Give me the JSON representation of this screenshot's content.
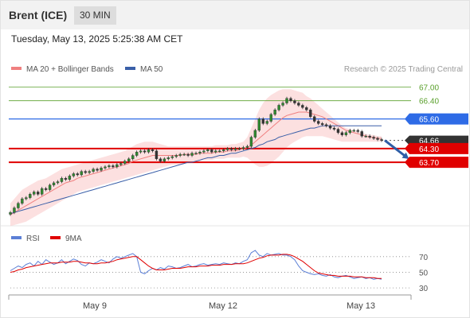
{
  "header": {
    "instrument": "Brent (ICE)",
    "timeframe": "30 MIN",
    "timestamp": "Tuesday, May 13, 2025 5:25:38 AM CET"
  },
  "legend": {
    "ma20": {
      "label": "MA 20 + Bollinger Bands",
      "color": "#f08080"
    },
    "ma50": {
      "label": "MA 50",
      "color": "#3a5fa8"
    },
    "copyright": "Research © 2025 Trading Central"
  },
  "rsi_legend": {
    "rsi": {
      "label": "RSI",
      "color": "#5b7fd6"
    },
    "ma9": {
      "label": "9MA",
      "color": "#e00000"
    }
  },
  "levels": [
    {
      "value": 67.0,
      "label": "67.00",
      "kind": "resistance-green",
      "color": "#5aa02c"
    },
    {
      "value": 66.4,
      "label": "66.40",
      "kind": "resistance-green",
      "color": "#5aa02c"
    },
    {
      "value": 65.6,
      "label": "65.60",
      "kind": "pivot",
      "color": "#2e6be6"
    },
    {
      "value": 64.66,
      "label": "64.66",
      "kind": "current",
      "color": "#333333"
    },
    {
      "value": 64.3,
      "label": "64.30",
      "kind": "support",
      "color": "#e00000"
    },
    {
      "value": 63.7,
      "label": "63.70",
      "kind": "support",
      "color": "#e00000"
    }
  ],
  "x_axis": {
    "labels": [
      "May 9",
      "May 12",
      "May 13"
    ]
  },
  "rsi_axis": {
    "labels": [
      "70",
      "50",
      "30"
    ],
    "values": [
      70,
      50,
      30
    ]
  },
  "chart_data": [
    {
      "type": "candlestick",
      "title": "Brent (ICE)",
      "y_range": [
        61.3,
        67.4
      ],
      "x_range": [
        0,
        100
      ],
      "close": [
        61.5,
        61.7,
        61.9,
        62.1,
        62.15,
        62.3,
        62.4,
        62.3,
        62.55,
        62.5,
        62.7,
        62.8,
        62.85,
        63.0,
        62.95,
        63.1,
        63.2,
        63.15,
        63.3,
        63.25,
        63.3,
        63.4,
        63.35,
        63.45,
        63.5,
        63.55,
        63.5,
        63.6,
        63.65,
        63.75,
        63.85,
        64.0,
        64.15,
        64.2,
        64.15,
        64.25,
        64.2,
        63.85,
        63.75,
        63.85,
        63.9,
        63.95,
        64.0,
        64.05,
        64.05,
        64.0,
        64.1,
        64.1,
        64.15,
        64.2,
        64.25,
        64.15,
        64.2,
        64.2,
        64.25,
        64.3,
        64.25,
        64.3,
        64.3,
        64.35,
        64.4,
        64.8,
        65.1,
        65.6,
        65.4,
        65.5,
        65.8,
        66.0,
        66.2,
        66.3,
        66.5,
        66.4,
        66.3,
        66.2,
        66.1,
        66.0,
        65.7,
        65.5,
        65.4,
        65.35,
        65.3,
        65.2,
        65.15,
        65.0,
        64.9,
        65.0,
        65.1,
        65.1,
        65.05,
        64.85,
        64.85,
        64.8,
        64.75,
        64.7,
        64.66
      ],
      "ma20": [
        61.4,
        61.5,
        61.6,
        61.7,
        61.8,
        61.9,
        62.0,
        62.1,
        62.2,
        62.3,
        62.4,
        62.5,
        62.6,
        62.7,
        62.8,
        62.85,
        62.9,
        63.0,
        63.05,
        63.1,
        63.15,
        63.2,
        63.25,
        63.3,
        63.35,
        63.4,
        63.45,
        63.5,
        63.55,
        63.6,
        63.65,
        63.75,
        63.8,
        63.85,
        63.9,
        63.95,
        64.0,
        64.0,
        64.0,
        64.0,
        64.0,
        64.0,
        64.0,
        64.0,
        64.05,
        64.05,
        64.05,
        64.05,
        64.1,
        64.1,
        64.1,
        64.1,
        64.15,
        64.15,
        64.15,
        64.2,
        64.2,
        64.2,
        64.25,
        64.3,
        64.35,
        64.45,
        64.6,
        64.75,
        64.9,
        65.05,
        65.2,
        65.35,
        65.5,
        65.65,
        65.75,
        65.8,
        65.85,
        65.9,
        65.9,
        65.9,
        65.85,
        65.8,
        65.75,
        65.7,
        65.6,
        65.5,
        65.4,
        65.3,
        65.2,
        65.1,
        65.05,
        65.0,
        64.95,
        64.9,
        64.85,
        64.8,
        64.8,
        64.75,
        64.75
      ],
      "bb_upper": [
        61.9,
        62.1,
        62.3,
        62.5,
        62.6,
        62.7,
        62.8,
        62.9,
        62.95,
        63.0,
        63.1,
        63.2,
        63.3,
        63.4,
        63.45,
        63.5,
        63.55,
        63.6,
        63.65,
        63.7,
        63.75,
        63.8,
        63.85,
        63.9,
        63.95,
        64.0,
        64.05,
        64.1,
        64.15,
        64.2,
        64.3,
        64.4,
        64.5,
        64.55,
        64.6,
        64.6,
        64.6,
        64.55,
        64.5,
        64.45,
        64.4,
        64.4,
        64.4,
        64.4,
        64.4,
        64.4,
        64.4,
        64.4,
        64.4,
        64.4,
        64.4,
        64.4,
        64.45,
        64.45,
        64.45,
        64.45,
        64.5,
        64.5,
        64.55,
        64.6,
        64.8,
        65.2,
        65.6,
        66.0,
        66.3,
        66.5,
        66.65,
        66.75,
        66.85,
        66.9,
        66.9,
        66.9,
        66.85,
        66.8,
        66.75,
        66.6,
        66.5,
        66.35,
        66.2,
        66.05,
        65.9,
        65.75,
        65.6,
        65.45,
        65.3,
        65.2,
        65.15,
        65.1,
        65.05,
        65.0,
        64.95,
        64.9,
        64.9,
        64.85,
        64.85
      ],
      "bb_lower": [
        60.9,
        60.95,
        61.0,
        61.05,
        61.1,
        61.2,
        61.3,
        61.4,
        61.5,
        61.6,
        61.7,
        61.8,
        61.9,
        62.0,
        62.1,
        62.2,
        62.3,
        62.4,
        62.45,
        62.5,
        62.55,
        62.6,
        62.65,
        62.7,
        62.75,
        62.8,
        62.85,
        62.9,
        62.95,
        63.0,
        63.05,
        63.1,
        63.15,
        63.2,
        63.25,
        63.3,
        63.35,
        63.4,
        63.45,
        63.5,
        63.55,
        63.6,
        63.6,
        63.6,
        63.65,
        63.7,
        63.7,
        63.7,
        63.75,
        63.8,
        63.8,
        63.8,
        63.85,
        63.85,
        63.85,
        63.9,
        63.9,
        63.9,
        63.9,
        63.95,
        63.9,
        63.75,
        63.6,
        63.5,
        63.5,
        63.55,
        63.65,
        63.8,
        63.95,
        64.15,
        64.35,
        64.5,
        64.6,
        64.7,
        64.8,
        64.85,
        64.85,
        64.85,
        64.85,
        64.85,
        64.8,
        64.75,
        64.7,
        64.65,
        64.6,
        64.6,
        64.6,
        64.6,
        64.6,
        64.6,
        64.6,
        64.6,
        64.6,
        64.6,
        64.6
      ],
      "ma50": [
        61.45,
        61.5,
        61.55,
        61.6,
        61.65,
        61.7,
        61.75,
        61.8,
        61.85,
        61.9,
        61.95,
        62.0,
        62.05,
        62.1,
        62.15,
        62.2,
        62.25,
        62.3,
        62.35,
        62.4,
        62.45,
        62.5,
        62.55,
        62.6,
        62.65,
        62.7,
        62.75,
        62.8,
        62.85,
        62.9,
        62.95,
        63.0,
        63.05,
        63.1,
        63.15,
        63.2,
        63.25,
        63.3,
        63.35,
        63.4,
        63.45,
        63.5,
        63.55,
        63.6,
        63.65,
        63.7,
        63.7,
        63.75,
        63.8,
        63.85,
        63.9,
        63.9,
        63.95,
        64.0,
        64.0,
        64.05,
        64.1,
        64.1,
        64.15,
        64.2,
        64.25,
        64.3,
        64.35,
        64.45,
        64.5,
        64.6,
        64.65,
        64.7,
        64.8,
        64.85,
        64.9,
        64.95,
        65.0,
        65.05,
        65.1,
        65.15,
        65.2,
        65.2,
        65.25,
        65.3,
        65.3,
        65.3,
        65.3,
        65.3,
        65.3,
        65.3,
        65.3,
        65.3,
        65.3,
        65.3,
        65.3,
        65.3,
        65.3,
        65.3,
        65.3
      ],
      "projection": {
        "from": 64.66,
        "to": 63.7
      }
    },
    {
      "type": "line",
      "title": "RSI",
      "y_range": [
        25,
        80
      ],
      "series": [
        {
          "name": "RSI",
          "values": [
            52,
            55,
            58,
            56,
            60,
            62,
            58,
            64,
            60,
            66,
            63,
            60,
            62,
            66,
            61,
            64,
            67,
            65,
            60,
            58,
            62,
            61,
            63,
            66,
            64,
            62,
            67,
            70,
            68,
            70,
            72,
            74,
            70,
            50,
            48,
            52,
            55,
            53,
            56,
            54,
            58,
            57,
            55,
            56,
            58,
            60,
            57,
            58,
            60,
            61,
            59,
            60,
            61,
            60,
            62,
            61,
            60,
            62,
            61,
            64,
            66,
            75,
            78,
            72,
            70,
            74,
            72,
            73,
            74,
            72,
            72,
            70,
            66,
            58,
            52,
            50,
            48,
            47,
            48,
            46,
            45,
            47,
            44,
            43,
            45,
            46,
            44,
            42,
            43,
            44,
            42,
            43,
            41,
            42,
            41
          ]
        },
        {
          "name": "9MA",
          "values": [
            50,
            51,
            53,
            54,
            56,
            57,
            58,
            59,
            60,
            61,
            62,
            62,
            62,
            63,
            63,
            63,
            64,
            64,
            63,
            62,
            62,
            61,
            61,
            62,
            62,
            63,
            64,
            66,
            67,
            68,
            69,
            70,
            70,
            66,
            62,
            58,
            55,
            53,
            53,
            53,
            54,
            55,
            55,
            55,
            56,
            57,
            57,
            57,
            58,
            58,
            58,
            59,
            59,
            59,
            60,
            60,
            60,
            61,
            61,
            61,
            62,
            64,
            66,
            68,
            69,
            71,
            72,
            72,
            72,
            73,
            73,
            72,
            70,
            67,
            64,
            60,
            56,
            52,
            49,
            48,
            47,
            46,
            46,
            45,
            45,
            45,
            45,
            44,
            44,
            44,
            43,
            43,
            43,
            42,
            42
          ]
        }
      ],
      "reference_lines": [
        70,
        50,
        30
      ]
    }
  ]
}
